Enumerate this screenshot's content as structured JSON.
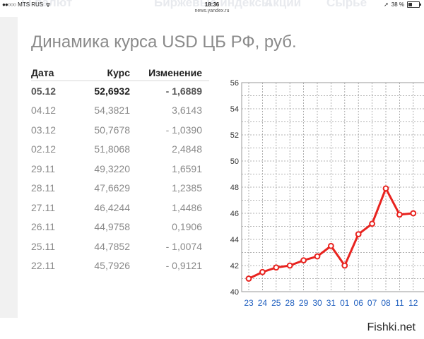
{
  "status_bar": {
    "carrier": "MTS RUS",
    "time": "18:36",
    "url": "news.yandex.ru",
    "battery_text": "38 %",
    "battery_level": 0.38,
    "ghost_tabs": [
      "ы валют",
      "Биржевые индексы",
      "Акции",
      "Сырье"
    ]
  },
  "heading": "Динамика курса USD ЦБ РФ, руб.",
  "table": {
    "headers": {
      "date": "Дата",
      "rate": "Курс",
      "change": "Изменение"
    },
    "rows": [
      {
        "date": "05.12",
        "rate": "52,6932",
        "change": "- 1,6889"
      },
      {
        "date": "04.12",
        "rate": "54,3821",
        "change": "3,6143"
      },
      {
        "date": "03.12",
        "rate": "50,7678",
        "change": "- 1,0390"
      },
      {
        "date": "02.12",
        "rate": "51,8068",
        "change": "2,4848"
      },
      {
        "date": "29.11",
        "rate": "49,3220",
        "change": "1,6591"
      },
      {
        "date": "28.11",
        "rate": "47,6629",
        "change": "1,2385"
      },
      {
        "date": "27.11",
        "rate": "46,4244",
        "change": "1,4486"
      },
      {
        "date": "26.11",
        "rate": "44,9758",
        "change": "0,1906"
      },
      {
        "date": "25.11",
        "rate": "44,7852",
        "change": "- 1,0074"
      },
      {
        "date": "22.11",
        "rate": "45,7926",
        "change": "- 0,9121"
      }
    ]
  },
  "chart_data": {
    "type": "line",
    "categories": [
      "23",
      "24",
      "25",
      "28",
      "29",
      "30",
      "31",
      "01",
      "06",
      "07",
      "08",
      "11",
      "12"
    ],
    "series": [
      {
        "values": [
          41.0,
          41.5,
          41.85,
          42.0,
          42.4,
          42.7,
          43.5,
          42.0,
          44.4,
          45.2,
          47.9,
          45.9,
          46.0
        ]
      }
    ],
    "yticks": [
      40,
      42,
      44,
      46,
      48,
      50,
      52,
      54,
      56
    ],
    "ylim": [
      40,
      56
    ],
    "grid": true,
    "line_color": "#e8231f",
    "grid_color": "#9a9a9a",
    "xtick_color": "#1f5fbf"
  },
  "watermark": "Fishki.net"
}
